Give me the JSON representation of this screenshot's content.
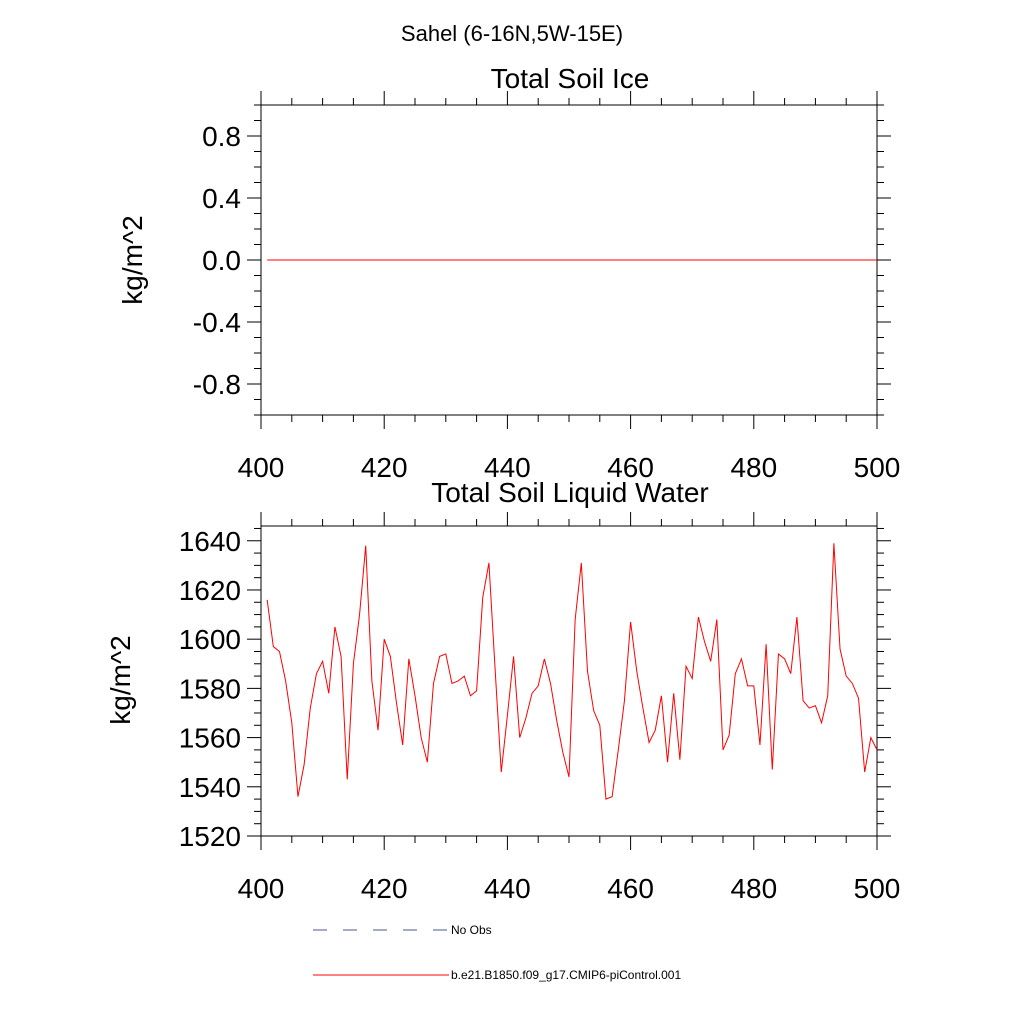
{
  "suptitle": "Sahel (6-16N,5W-15E)",
  "colors": {
    "model_line": "#ff0000",
    "obs_line": "#4a5a8a",
    "axis": "#000000",
    "background": "#ffffff"
  },
  "chart_data": [
    {
      "type": "line",
      "title": "Total Soil Ice",
      "xlabel": "",
      "ylabel": "kg/m^2",
      "xlim": [
        401,
        500
      ],
      "ylim": [
        -1.0,
        1.0
      ],
      "x_ticks": [
        400,
        420,
        440,
        460,
        480,
        500
      ],
      "x_tick_labels": [
        "400",
        "420",
        "440",
        "460",
        "480",
        "500"
      ],
      "y_ticks": [
        -0.8,
        -0.4,
        0.0,
        0.4,
        0.8
      ],
      "y_tick_labels": [
        "-0.8",
        "-0.4",
        "0.0",
        "0.4",
        "0.8"
      ],
      "series": [
        {
          "name": "b.e21.B1850.f09_g17.CMIP6-piControl.001",
          "x_start": 401,
          "x_step": 1,
          "values": [
            0,
            0,
            0,
            0,
            0,
            0,
            0,
            0,
            0,
            0,
            0,
            0,
            0,
            0,
            0,
            0,
            0,
            0,
            0,
            0,
            0,
            0,
            0,
            0,
            0,
            0,
            0,
            0,
            0,
            0,
            0,
            0,
            0,
            0,
            0,
            0,
            0,
            0,
            0,
            0,
            0,
            0,
            0,
            0,
            0,
            0,
            0,
            0,
            0,
            0,
            0,
            0,
            0,
            0,
            0,
            0,
            0,
            0,
            0,
            0,
            0,
            0,
            0,
            0,
            0,
            0,
            0,
            0,
            0,
            0,
            0,
            0,
            0,
            0,
            0,
            0,
            0,
            0,
            0,
            0,
            0,
            0,
            0,
            0,
            0,
            0,
            0,
            0,
            0,
            0,
            0,
            0,
            0,
            0,
            0,
            0,
            0,
            0,
            0,
            0
          ]
        }
      ]
    },
    {
      "type": "line",
      "title": "Total Soil Liquid Water",
      "xlabel": "",
      "ylabel": "kg/m^2",
      "xlim": [
        401,
        500
      ],
      "ylim": [
        1520,
        1646
      ],
      "x_ticks": [
        400,
        420,
        440,
        460,
        480,
        500
      ],
      "x_tick_labels": [
        "400",
        "420",
        "440",
        "460",
        "480",
        "500"
      ],
      "y_ticks": [
        1520,
        1540,
        1560,
        1580,
        1600,
        1620,
        1640
      ],
      "y_tick_labels": [
        "1520",
        "1540",
        "1560",
        "1580",
        "1600",
        "1620",
        "1640"
      ],
      "series": [
        {
          "name": "b.e21.B1850.f09_g17.CMIP6-piControl.001",
          "x_start": 401,
          "x_step": 1,
          "values": [
            1616,
            1597,
            1595,
            1583,
            1566,
            1536,
            1549,
            1572,
            1586,
            1591,
            1578,
            1605,
            1593,
            1543,
            1590,
            1610,
            1638,
            1583,
            1563,
            1600,
            1593,
            1574,
            1557,
            1592,
            1577,
            1560,
            1550,
            1582,
            1593,
            1594,
            1582,
            1583,
            1585,
            1577,
            1579,
            1617,
            1631,
            1588,
            1546,
            1569,
            1593,
            1560,
            1568,
            1578,
            1581,
            1592,
            1582,
            1567,
            1554,
            1544,
            1608,
            1631,
            1587,
            1571,
            1565,
            1535,
            1536,
            1555,
            1575,
            1607,
            1587,
            1572,
            1558,
            1563,
            1577,
            1550,
            1578,
            1551,
            1589,
            1584,
            1609,
            1599,
            1591,
            1608,
            1555,
            1561,
            1586,
            1592,
            1581,
            1581,
            1557,
            1598,
            1547,
            1594,
            1592,
            1586,
            1609,
            1575,
            1572,
            1573,
            1566,
            1577,
            1639,
            1596,
            1585,
            1582,
            1576,
            1546,
            1560,
            1555
          ]
        }
      ]
    }
  ],
  "legend": [
    {
      "label": "No Obs",
      "style": "dashed"
    },
    {
      "label": "b.e21.B1850.f09_g17.CMIP6-piControl.001",
      "style": "solid"
    }
  ]
}
